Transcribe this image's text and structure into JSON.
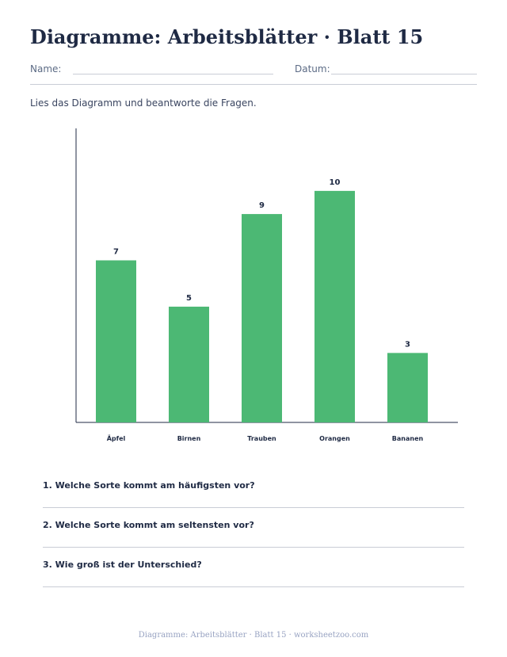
{
  "worksheet": {
    "title": "Diagramme: Arbeitsblätter · Blatt 15",
    "name_label": "Name:",
    "date_label": "Datum:",
    "instructions": "Lies das Diagramm und beantworte die Fragen."
  },
  "chart_data": {
    "type": "bar",
    "categories": [
      "Äpfel",
      "Birnen",
      "Trauben",
      "Orangen",
      "Bananen"
    ],
    "values": [
      7,
      5,
      9,
      10,
      3
    ],
    "data_labels": [
      "7",
      "5",
      "9",
      "10",
      "3"
    ],
    "bar_color": "#4cb874",
    "ylim": [
      0,
      12.7
    ],
    "grid": false
  },
  "questions": [
    {
      "text": "1. Welche Sorte kommt am häufigsten vor?"
    },
    {
      "text": "2. Welche Sorte kommt am seltensten vor?"
    },
    {
      "text": "3. Wie groß ist der Unterschied?"
    }
  ],
  "footer": "Diagramme: Arbeitsblätter · Blatt 15 · worksheetzoo.com"
}
